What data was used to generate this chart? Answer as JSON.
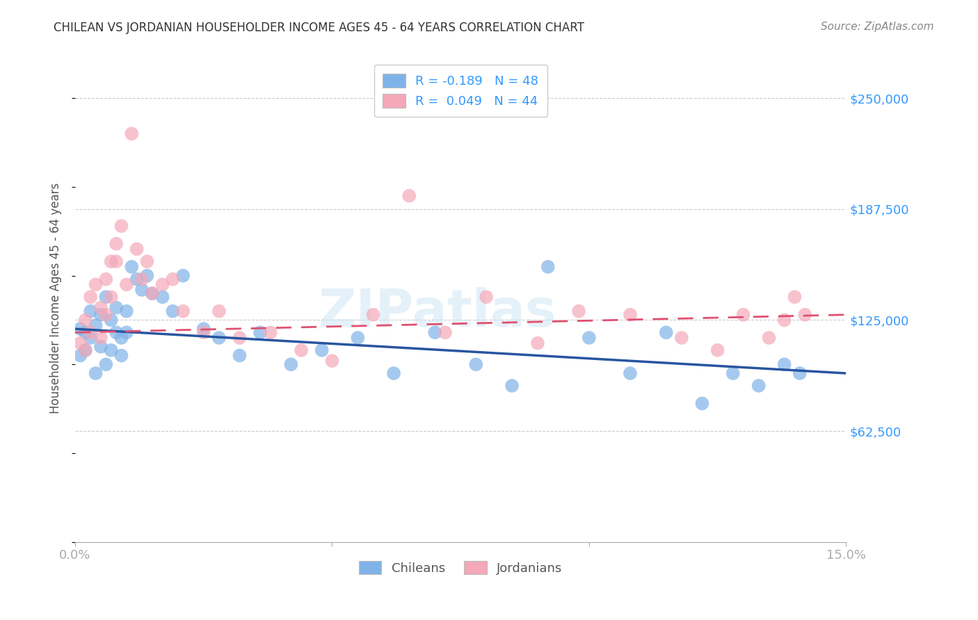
{
  "title": "CHILEAN VS JORDANIAN HOUSEHOLDER INCOME AGES 45 - 64 YEARS CORRELATION CHART",
  "source": "Source: ZipAtlas.com",
  "ylabel": "Householder Income Ages 45 - 64 years",
  "xlim": [
    0.0,
    0.15
  ],
  "ylim": [
    0,
    275000
  ],
  "yticks": [
    62500,
    125000,
    187500,
    250000
  ],
  "ytick_labels": [
    "$62,500",
    "$125,000",
    "$187,500",
    "$250,000"
  ],
  "xticks": [
    0.0,
    0.05,
    0.1,
    0.15
  ],
  "xtick_labels": [
    "0.0%",
    "",
    "",
    "15.0%"
  ],
  "watermark": "ZIPatlas",
  "legend_chilean": "R = -0.189   N = 48",
  "legend_jordanian": "R =  0.049   N = 44",
  "color_chilean": "#7fb3e8",
  "color_jordanian": "#f4a8b8",
  "line_color_chilean": "#2855a0",
  "line_color_jordanian": "#e05070",
  "background_color": "#ffffff",
  "chilean_x": [
    0.001,
    0.001,
    0.002,
    0.002,
    0.003,
    0.003,
    0.004,
    0.004,
    0.005,
    0.005,
    0.006,
    0.006,
    0.007,
    0.007,
    0.008,
    0.008,
    0.009,
    0.009,
    0.01,
    0.01,
    0.011,
    0.012,
    0.013,
    0.014,
    0.015,
    0.017,
    0.019,
    0.021,
    0.025,
    0.028,
    0.032,
    0.036,
    0.042,
    0.048,
    0.055,
    0.062,
    0.07,
    0.078,
    0.085,
    0.092,
    0.1,
    0.108,
    0.115,
    0.122,
    0.128,
    0.133,
    0.138,
    0.141
  ],
  "chilean_y": [
    120000,
    105000,
    118000,
    108000,
    130000,
    115000,
    122000,
    95000,
    128000,
    110000,
    138000,
    100000,
    125000,
    108000,
    118000,
    132000,
    115000,
    105000,
    130000,
    118000,
    155000,
    148000,
    142000,
    150000,
    140000,
    138000,
    130000,
    150000,
    120000,
    115000,
    105000,
    118000,
    100000,
    108000,
    115000,
    95000,
    118000,
    100000,
    88000,
    155000,
    115000,
    95000,
    118000,
    78000,
    95000,
    88000,
    100000,
    95000
  ],
  "jordanian_x": [
    0.001,
    0.002,
    0.002,
    0.003,
    0.003,
    0.004,
    0.005,
    0.005,
    0.006,
    0.006,
    0.007,
    0.007,
    0.008,
    0.008,
    0.009,
    0.01,
    0.011,
    0.012,
    0.013,
    0.014,
    0.015,
    0.017,
    0.019,
    0.021,
    0.025,
    0.028,
    0.032,
    0.038,
    0.044,
    0.05,
    0.058,
    0.065,
    0.072,
    0.08,
    0.09,
    0.098,
    0.108,
    0.118,
    0.125,
    0.13,
    0.135,
    0.138,
    0.14,
    0.142
  ],
  "jordanian_y": [
    112000,
    125000,
    108000,
    138000,
    118000,
    145000,
    132000,
    115000,
    148000,
    128000,
    158000,
    138000,
    168000,
    158000,
    178000,
    145000,
    230000,
    165000,
    148000,
    158000,
    140000,
    145000,
    148000,
    130000,
    118000,
    130000,
    115000,
    118000,
    108000,
    102000,
    128000,
    195000,
    118000,
    138000,
    112000,
    130000,
    128000,
    115000,
    108000,
    128000,
    115000,
    125000,
    138000,
    128000
  ]
}
